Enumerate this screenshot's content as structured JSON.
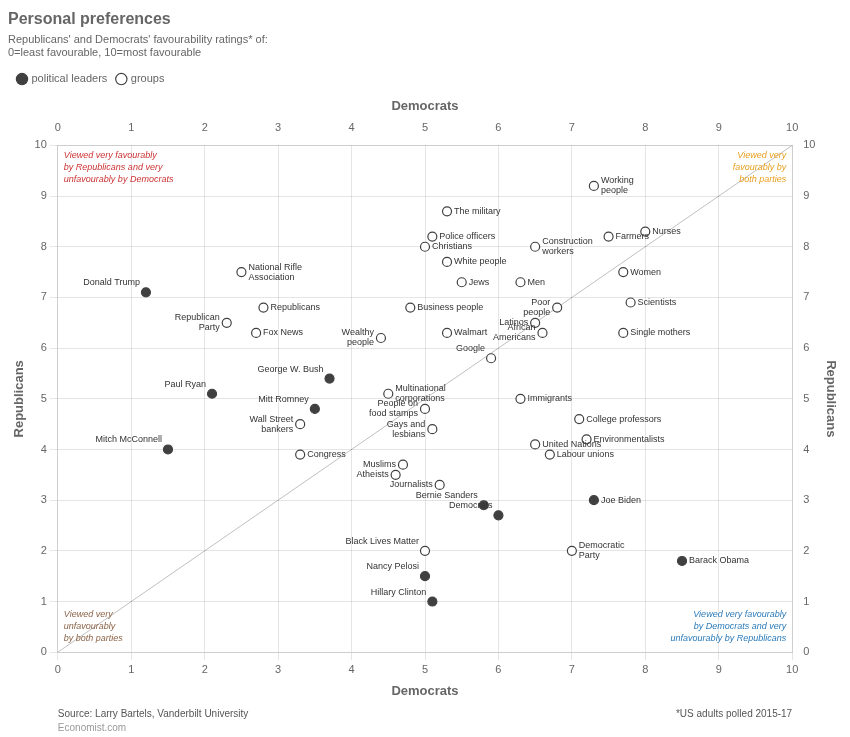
{
  "chart_data": {
    "type": "scatter",
    "title": "Personal preferences",
    "subtitle": "Republicans' and Democrats' favourability ratings* of:",
    "subtitle2": "0=least favourable, 10=most favourable",
    "source": "Source: Larry Bartels, Vanderbilt University",
    "footnote": "*US adults polled 2015-17",
    "watermark": "Economist.com",
    "xlabel": "Democrats",
    "x2label": "Democrats",
    "ylabel": "Republicans",
    "y2label": "Republicans",
    "xlim": [
      0,
      10
    ],
    "xticks": [
      0,
      1,
      2,
      3,
      4,
      5,
      6,
      7,
      8,
      9,
      10
    ],
    "x2lim": [
      0,
      10
    ],
    "x2ticks": [
      0,
      1,
      2,
      3,
      4,
      5,
      6,
      7,
      8,
      9,
      10
    ],
    "ylim": [
      0,
      10
    ],
    "yticks": [
      0,
      1,
      2,
      3,
      4,
      5,
      6,
      7,
      8,
      9,
      10
    ],
    "y2lim": [
      0,
      10
    ],
    "y2ticks": [
      0,
      1,
      2,
      3,
      4,
      5,
      6,
      7,
      8,
      9,
      10
    ],
    "grid": true,
    "legend": "top",
    "series": [
      {
        "name": "political leaders",
        "color": "#404040",
        "marker": "circle",
        "x": [
          1.2,
          2.1,
          1.5,
          3.7,
          3.5,
          5.1,
          5.0,
          5.8,
          6.0,
          7.3,
          8.5
        ],
        "values": [
          7.1,
          5.1,
          4.0,
          5.4,
          4.8,
          1.0,
          1.5,
          2.9,
          2.7,
          3.0,
          1.8
        ],
        "labels": [
          "Donald Trump",
          "Paul Ryan",
          "Mitch McConnell",
          "George W. Bush",
          "Mitt Romney",
          "Hillary Clinton",
          "Nancy Pelosi",
          "Bernie Sanders",
          "Democrats",
          "Joe Biden",
          "Barack Obama"
        ]
      },
      {
        "name": "groups",
        "color": "#404040",
        "marker": "circle_open",
        "x": [
          5.3,
          5.1,
          5.0,
          5.3,
          5.5,
          6.3,
          4.8,
          4.4,
          5.3,
          2.5,
          2.8,
          2.7,
          2.3,
          3.3,
          3.3,
          4.5,
          5.0,
          5.1,
          4.7,
          4.6,
          5.2,
          5.0,
          7.0,
          7.3,
          7.5,
          8.0,
          6.5,
          7.7,
          6.8,
          7.8,
          6.5,
          6.6,
          7.7,
          5.9,
          6.3,
          7.1,
          7.2,
          6.5,
          6.7
        ],
        "values": [
          8.7,
          8.2,
          8.0,
          7.7,
          7.3,
          7.3,
          6.8,
          6.2,
          6.3,
          7.5,
          6.8,
          6.3,
          6.5,
          3.9,
          4.5,
          5.1,
          4.8,
          4.4,
          3.7,
          3.5,
          3.3,
          2.0,
          2.0,
          9.2,
          8.2,
          8.3,
          8.0,
          7.5,
          6.8,
          6.9,
          6.5,
          6.3,
          6.3,
          5.8,
          5.0,
          4.6,
          4.2,
          4.1,
          3.9
        ],
        "labels": [
          "The military",
          "Police officers",
          "Christians",
          "White people",
          "Jews",
          "Men",
          "Business people",
          "Wealthy\npeople",
          "Walmart",
          "National Rifle\nAssociation",
          "Republicans",
          "Fox News",
          "Republican\nParty",
          "Congress",
          "Wall Street\nbankers",
          "Multinational\ncorporations",
          "People on\nfood stamps",
          "Gays and\nlesbians",
          "Muslims",
          "Atheists",
          "Journalists",
          "Black Lives Matter",
          "Democratic\nParty",
          "Working\npeople",
          "Farmers",
          "Nurses",
          "Construction\nworkers",
          "Women",
          "Poor\npeople",
          "Scientists",
          "Latinos",
          "African\nAmericans",
          "Single mothers",
          "Google",
          "Immigrants",
          "College professors",
          "Environmentalists",
          "United Nations",
          "Labour unions"
        ]
      }
    ],
    "annotations": [
      {
        "text": "Viewed very favourably\nby Republicans and very\nunfavourably by Democrats",
        "color": "#cc3333"
      },
      {
        "text": "Viewed very\nfavourably by\nboth parties",
        "color": "#e8a020"
      },
      {
        "text": "Viewed very\nunfavourably\nby both parties",
        "color": "#8B6347"
      },
      {
        "text": "Viewed very favourably\nby Democrats and very\nunfavourably by Republicans",
        "color": "#2b7bba"
      }
    ]
  }
}
